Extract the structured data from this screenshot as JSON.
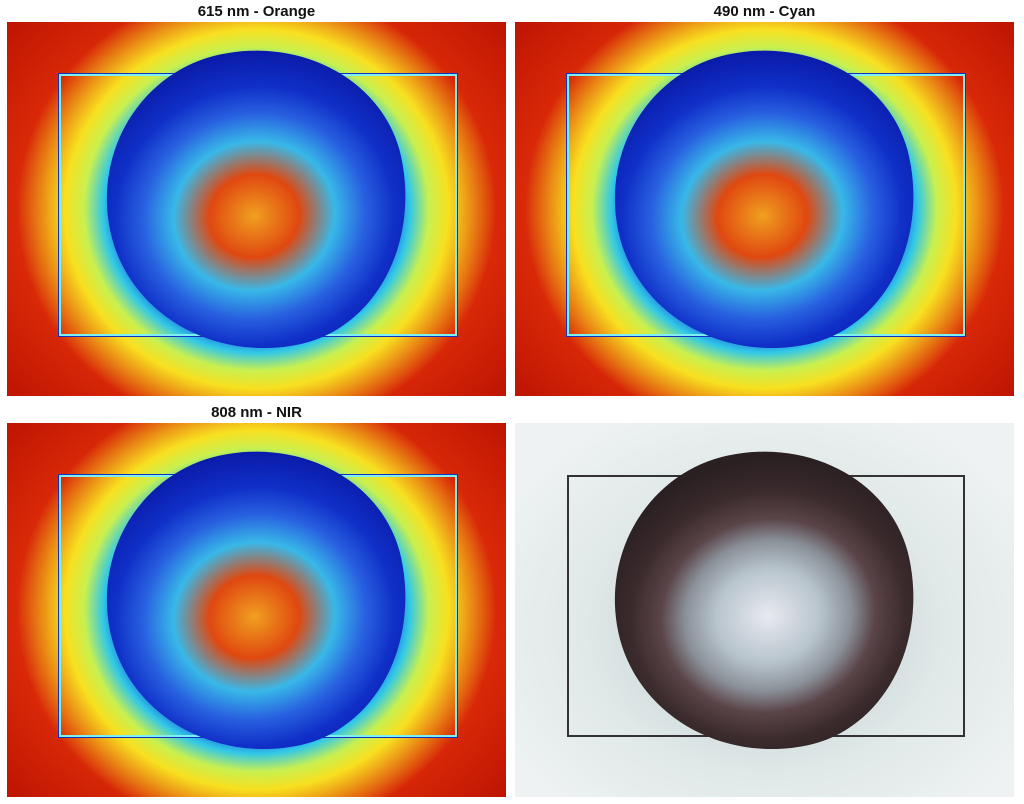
{
  "panels": [
    {
      "title": "615 nm - Orange",
      "type": "false-color"
    },
    {
      "title": "490 nm - Cyan",
      "type": "false-color"
    },
    {
      "title": "808 nm - NIR",
      "type": "false-color"
    },
    {
      "title": "",
      "type": "rgb"
    }
  ],
  "colormap": [
    "#0a1aa8",
    "#31c8e8",
    "#c8f050",
    "#f8e020",
    "#f06a10",
    "#b81000"
  ]
}
